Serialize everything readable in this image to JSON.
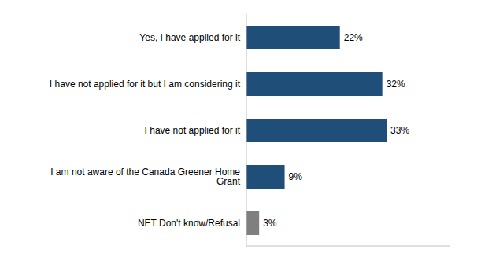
{
  "chart_data": {
    "type": "bar",
    "orientation": "horizontal",
    "categories": [
      "Yes, I have applied for it",
      "I have not applied for it but I am considering it",
      "I have not applied for it",
      "I am not aware of the Canada Greener Home Grant",
      "NET Don't know/Refusal"
    ],
    "values": [
      22,
      32,
      33,
      9,
      3
    ],
    "value_labels": [
      "22%",
      "32%",
      "33%",
      "9%",
      "3%"
    ],
    "colors": [
      "#1F4E79",
      "#1F4E79",
      "#1F4E79",
      "#1F4E79",
      "#7F7F7F"
    ],
    "xlim": [
      0,
      48
    ],
    "data_labels": true,
    "tick_labels": "y",
    "grid": false
  }
}
